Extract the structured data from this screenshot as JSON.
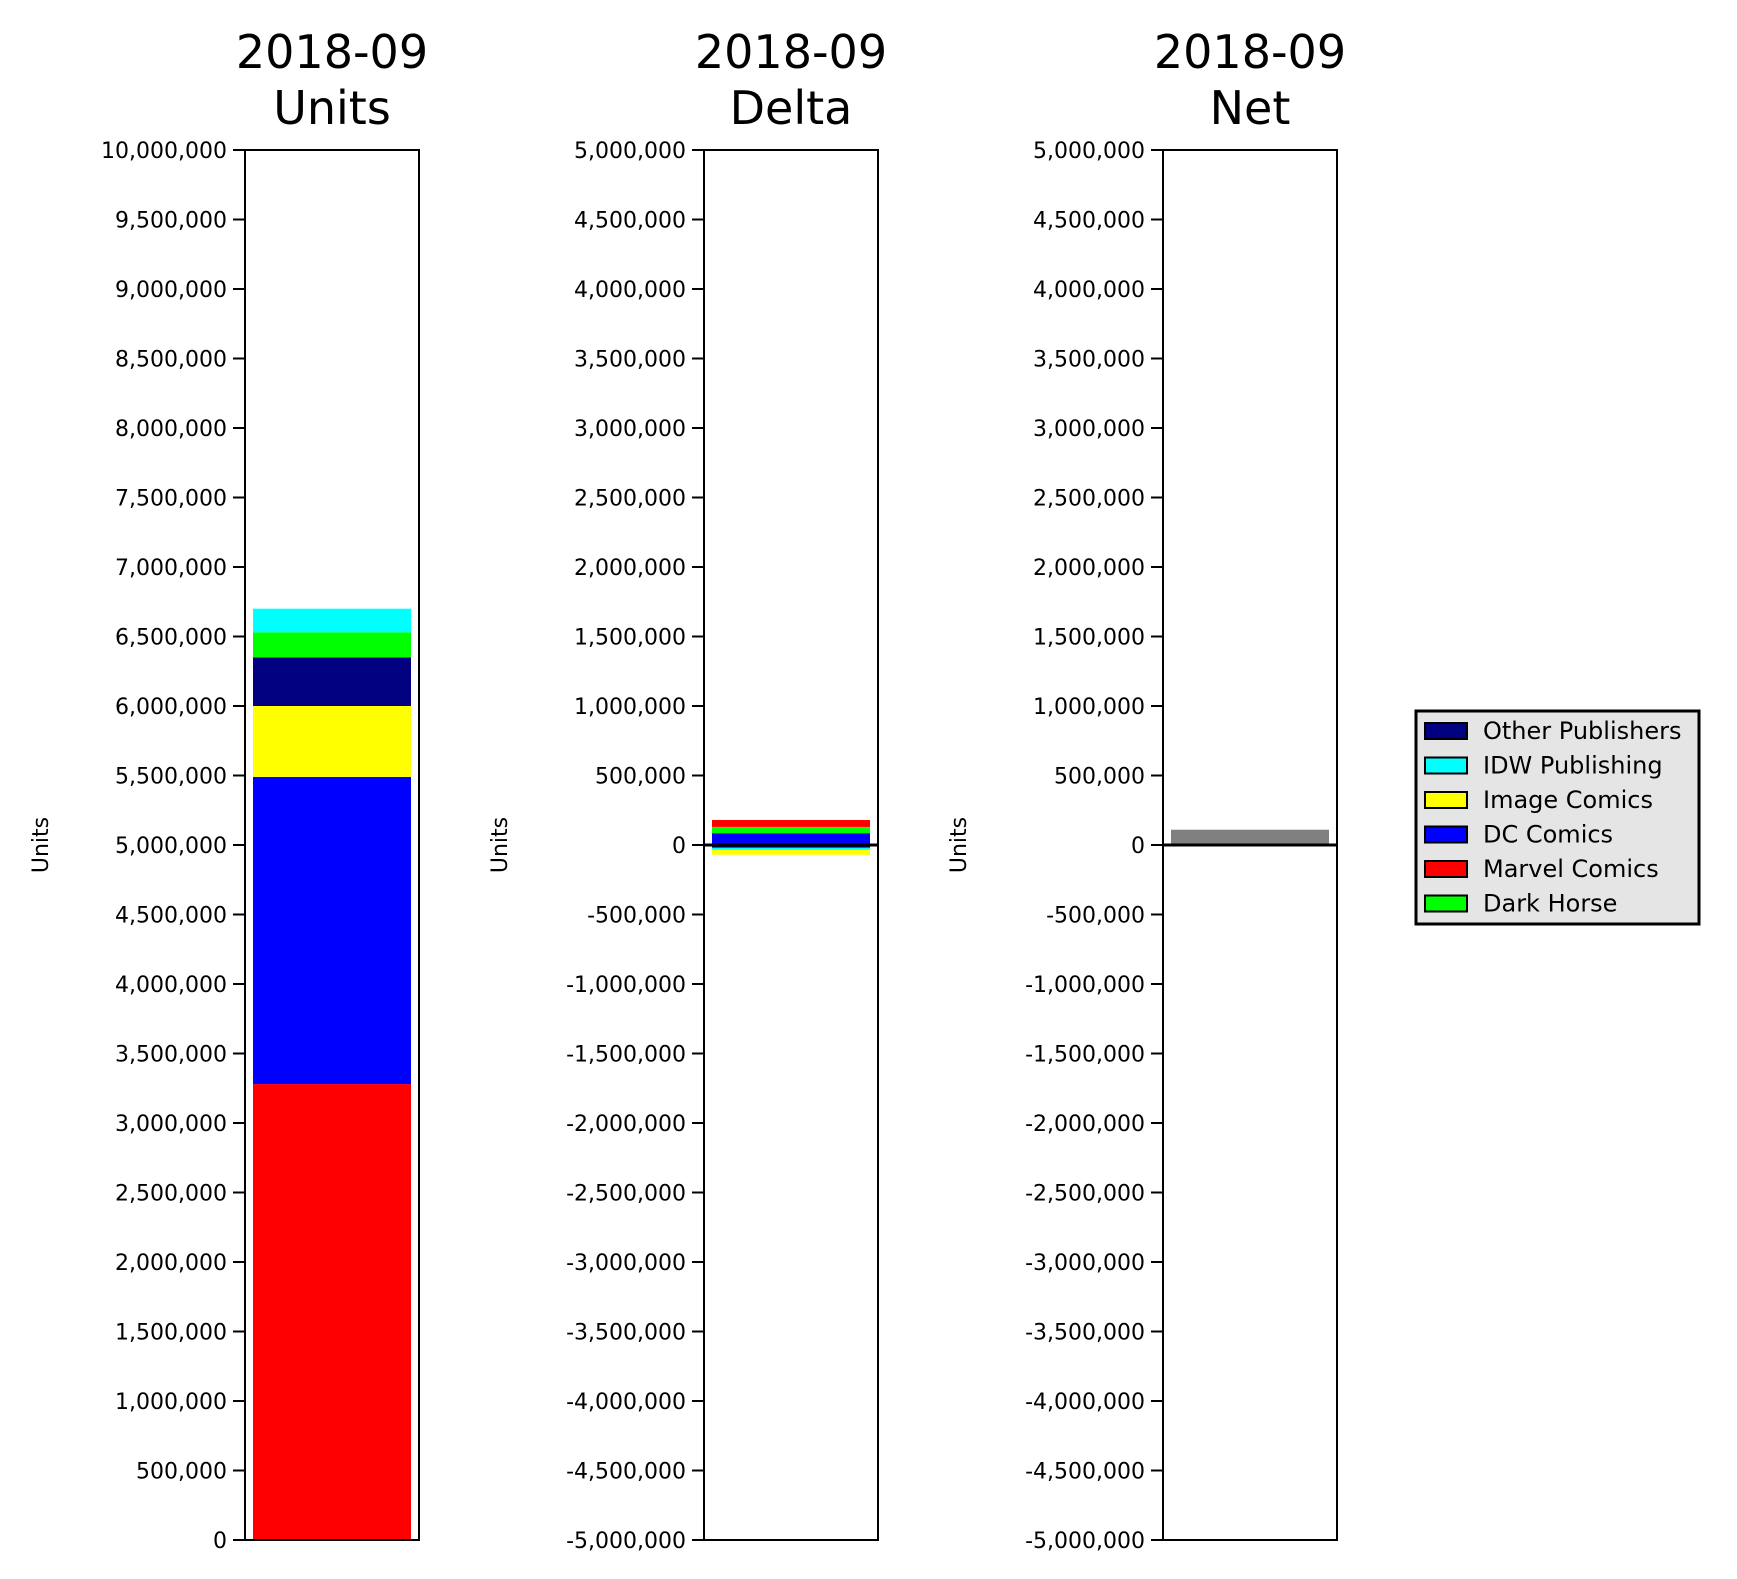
{
  "chart_data": [
    {
      "type": "bar",
      "stacked": true,
      "title_line1": "2018-09",
      "title_line2": "Units",
      "ylabel": "Units",
      "ylim": [
        0,
        10000000
      ],
      "tick_labels": [
        "0",
        "500,000",
        "1,000,000",
        "1,500,000",
        "2,000,000",
        "2,500,000",
        "3,000,000",
        "3,500,000",
        "4,000,000",
        "4,500,000",
        "5,000,000",
        "5,500,000",
        "6,000,000",
        "6,500,000",
        "7,000,000",
        "7,500,000",
        "8,000,000",
        "8,500,000",
        "9,000,000",
        "9,500,000",
        "10,000,000"
      ],
      "series": [
        {
          "name": "Marvel Comics",
          "color": "#ff0000",
          "value": 3280000
        },
        {
          "name": "DC Comics",
          "color": "#0000ff",
          "value": 2210000
        },
        {
          "name": "Image Comics",
          "color": "#ffff00",
          "value": 510000
        },
        {
          "name": "Other Publishers",
          "color": "#000080",
          "value": 350000
        },
        {
          "name": "Dark Horse",
          "color": "#00ff00",
          "value": 180000
        },
        {
          "name": "IDW Publishing",
          "color": "#00ffff",
          "value": 170000
        }
      ]
    },
    {
      "type": "bar",
      "stacked": true,
      "title_line1": "2018-09",
      "title_line2": "Delta",
      "ylabel": "Units",
      "ylim": [
        -5000000,
        5000000
      ],
      "zero_line": true,
      "tick_labels": [
        "-5,000,000",
        "-4,500,000",
        "-4,000,000",
        "-3,500,000",
        "-3,000,000",
        "-2,500,000",
        "-2,000,000",
        "-1,500,000",
        "-1,000,000",
        "-500,000",
        "0",
        "500,000",
        "1,000,000",
        "1,500,000",
        "2,000,000",
        "2,500,000",
        "3,000,000",
        "3,500,000",
        "4,000,000",
        "4,500,000",
        "5,000,000"
      ],
      "series": [
        {
          "name": "DC Comics",
          "color": "#0000ff",
          "value": 85000
        },
        {
          "name": "Dark Horse",
          "color": "#00ff00",
          "value": 45000
        },
        {
          "name": "Marvel Comics",
          "color": "#ff0000",
          "value": 50000
        },
        {
          "name": "Other Publishers",
          "color": "#000080",
          "value": -20000
        },
        {
          "name": "IDW Publishing",
          "color": "#00ffff",
          "value": -15000
        },
        {
          "name": "Image Comics",
          "color": "#ffff00",
          "value": -35000
        }
      ]
    },
    {
      "type": "bar",
      "title_line1": "2018-09",
      "title_line2": "Net",
      "ylabel": "Units",
      "ylim": [
        -5000000,
        5000000
      ],
      "zero_line": true,
      "tick_labels": [
        "-5,000,000",
        "-4,500,000",
        "-4,000,000",
        "-3,500,000",
        "-3,000,000",
        "-2,500,000",
        "-2,000,000",
        "-1,500,000",
        "-1,000,000",
        "-500,000",
        "0",
        "500,000",
        "1,000,000",
        "1,500,000",
        "2,000,000",
        "2,500,000",
        "3,000,000",
        "3,500,000",
        "4,000,000",
        "4,500,000",
        "5,000,000"
      ],
      "series": [
        {
          "name": "",
          "color": "#808080",
          "value": 110000
        }
      ]
    }
  ],
  "legend": {
    "placement": "right",
    "background": "#e5e5e5",
    "items": [
      {
        "label": "Other Publishers",
        "color": "#000080"
      },
      {
        "label": "IDW Publishing",
        "color": "#00ffff"
      },
      {
        "label": "Image Comics",
        "color": "#ffff00"
      },
      {
        "label": "DC Comics",
        "color": "#0000ff"
      },
      {
        "label": "Marvel Comics",
        "color": "#ff0000"
      },
      {
        "label": "Dark Horse",
        "color": "#00ff00"
      }
    ]
  }
}
